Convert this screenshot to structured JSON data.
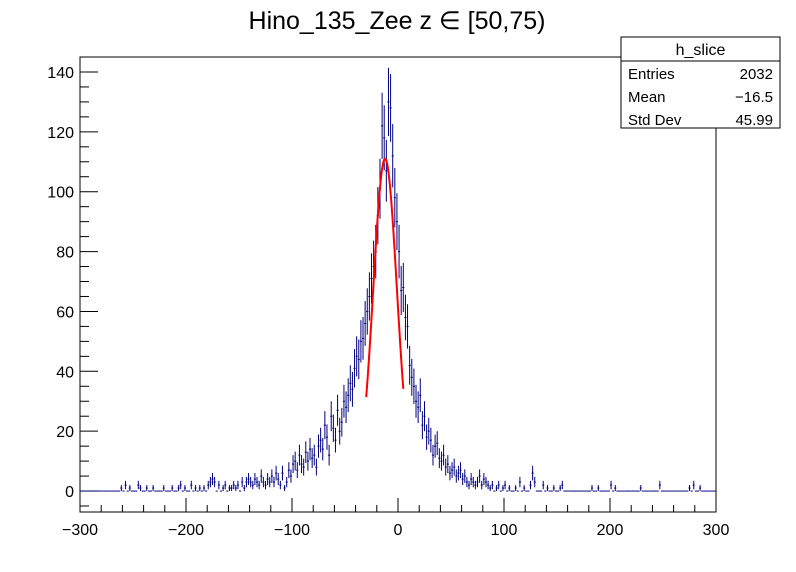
{
  "chart_data": {
    "type": "histogram",
    "title": "Hino_135_Zee z  ∈ [50,75)",
    "xlabel": "",
    "ylabel": "",
    "xlim": [
      -300,
      300
    ],
    "ylim": [
      -7,
      145
    ],
    "x_ticks": [
      -300,
      -200,
      -100,
      0,
      100,
      200,
      300
    ],
    "x_tick_labels": [
      "−300",
      "−200",
      "−100",
      "0",
      "100",
      "200",
      "300"
    ],
    "y_ticks": [
      0,
      20,
      40,
      60,
      80,
      100,
      120,
      140
    ],
    "y_tick_labels": [
      "0",
      "20",
      "40",
      "60",
      "80",
      "100",
      "120",
      "140"
    ],
    "grid": false,
    "histogram_color": "#000080",
    "fit_color": "#ff0000",
    "bin_width": 2,
    "bins": [
      [
        -262,
        1
      ],
      [
        -258,
        2
      ],
      [
        -254,
        1
      ],
      [
        -246,
        2
      ],
      [
        -244,
        1
      ],
      [
        -238,
        1
      ],
      [
        -232,
        1
      ],
      [
        -222,
        1
      ],
      [
        -214,
        1
      ],
      [
        -208,
        1
      ],
      [
        -206,
        2
      ],
      [
        -202,
        1
      ],
      [
        -196,
        2
      ],
      [
        -192,
        1
      ],
      [
        -188,
        1
      ],
      [
        -184,
        1
      ],
      [
        -180,
        2
      ],
      [
        -178,
        3
      ],
      [
        -176,
        4
      ],
      [
        -174,
        3
      ],
      [
        -170,
        2
      ],
      [
        -166,
        1
      ],
      [
        -164,
        2
      ],
      [
        -160,
        1
      ],
      [
        -158,
        1
      ],
      [
        -156,
        2
      ],
      [
        -154,
        1
      ],
      [
        -152,
        2
      ],
      [
        -148,
        3
      ],
      [
        -146,
        1
      ],
      [
        -144,
        3
      ],
      [
        -142,
        4
      ],
      [
        -140,
        3
      ],
      [
        -138,
        2
      ],
      [
        -136,
        4
      ],
      [
        -134,
        3
      ],
      [
        -132,
        2
      ],
      [
        -130,
        5
      ],
      [
        -128,
        3
      ],
      [
        -126,
        2
      ],
      [
        -124,
        4
      ],
      [
        -122,
        3
      ],
      [
        -120,
        5
      ],
      [
        -118,
        3
      ],
      [
        -116,
        6
      ],
      [
        -114,
        4
      ],
      [
        -112,
        2
      ],
      [
        -110,
        6
      ],
      [
        -108,
        1
      ],
      [
        -106,
        3
      ],
      [
        -104,
        7
      ],
      [
        -102,
        5
      ],
      [
        -100,
        9
      ],
      [
        -98,
        10
      ],
      [
        -96,
        7
      ],
      [
        -94,
        12
      ],
      [
        -92,
        9
      ],
      [
        -90,
        8
      ],
      [
        -88,
        13
      ],
      [
        -86,
        10
      ],
      [
        -84,
        14
      ],
      [
        -82,
        11
      ],
      [
        -80,
        12
      ],
      [
        -78,
        8
      ],
      [
        -76,
        15
      ],
      [
        -74,
        17
      ],
      [
        -72,
        14
      ],
      [
        -70,
        22
      ],
      [
        -68,
        18
      ],
      [
        -66,
        12
      ],
      [
        -64,
        25
      ],
      [
        -62,
        21
      ],
      [
        -60,
        17
      ],
      [
        -58,
        27
      ],
      [
        -56,
        20
      ],
      [
        -54,
        23
      ],
      [
        -52,
        30
      ],
      [
        -50,
        28
      ],
      [
        -48,
        32
      ],
      [
        -46,
        36
      ],
      [
        -44,
        34
      ],
      [
        -42,
        41
      ],
      [
        -40,
        45
      ],
      [
        -38,
        44
      ],
      [
        -36,
        50
      ],
      [
        -34,
        51
      ],
      [
        -32,
        56
      ],
      [
        -30,
        60
      ],
      [
        -28,
        65
      ],
      [
        -26,
        71
      ],
      [
        -24,
        75
      ],
      [
        -22,
        80
      ],
      [
        -20,
        92
      ],
      [
        -18,
        101
      ],
      [
        -16,
        122
      ],
      [
        -14,
        118
      ],
      [
        -12,
        107
      ],
      [
        -10,
        130
      ],
      [
        -8,
        128
      ],
      [
        -6,
        112
      ],
      [
        -4,
        98
      ],
      [
        -2,
        90
      ],
      [
        0,
        80
      ],
      [
        2,
        67
      ],
      [
        4,
        68
      ],
      [
        6,
        58
      ],
      [
        8,
        55
      ],
      [
        10,
        42
      ],
      [
        12,
        38
      ],
      [
        14,
        35
      ],
      [
        16,
        30
      ],
      [
        18,
        28
      ],
      [
        20,
        32
      ],
      [
        22,
        22
      ],
      [
        24,
        25
      ],
      [
        26,
        18
      ],
      [
        28,
        20
      ],
      [
        30,
        17
      ],
      [
        32,
        12
      ],
      [
        34,
        15
      ],
      [
        36,
        16
      ],
      [
        38,
        11
      ],
      [
        40,
        10
      ],
      [
        42,
        12
      ],
      [
        44,
        8
      ],
      [
        46,
        9
      ],
      [
        48,
        6
      ],
      [
        50,
        7
      ],
      [
        52,
        8
      ],
      [
        54,
        5
      ],
      [
        56,
        6
      ],
      [
        58,
        7
      ],
      [
        60,
        4
      ],
      [
        62,
        5
      ],
      [
        64,
        3
      ],
      [
        66,
        2
      ],
      [
        68,
        4
      ],
      [
        70,
        3
      ],
      [
        72,
        2
      ],
      [
        74,
        3
      ],
      [
        76,
        5
      ],
      [
        78,
        2
      ],
      [
        80,
        4
      ],
      [
        82,
        3
      ],
      [
        84,
        2
      ],
      [
        86,
        1
      ],
      [
        88,
        2
      ],
      [
        92,
        1
      ],
      [
        94,
        2
      ],
      [
        98,
        1
      ],
      [
        100,
        2
      ],
      [
        104,
        1
      ],
      [
        110,
        1
      ],
      [
        114,
        3
      ],
      [
        118,
        1
      ],
      [
        124,
        2
      ],
      [
        126,
        6
      ],
      [
        128,
        3
      ],
      [
        136,
        2
      ],
      [
        140,
        1
      ],
      [
        146,
        1
      ],
      [
        152,
        1
      ],
      [
        154,
        2
      ],
      [
        182,
        1
      ],
      [
        188,
        1
      ],
      [
        200,
        2
      ],
      [
        204,
        1
      ],
      [
        228,
        1
      ],
      [
        246,
        2
      ],
      [
        274,
        1
      ],
      [
        278,
        2
      ],
      [
        284,
        1
      ]
    ],
    "fit": {
      "type": "gauss",
      "range": [
        -30,
        5
      ],
      "mean": -12.2,
      "sigma": 11.2,
      "amplitude": 111
    },
    "legend": {
      "placement": "top-right",
      "title": "h_slice",
      "rows": [
        {
          "label": "Entries",
          "value": "2032"
        },
        {
          "label": "Mean",
          "value": "−16.5"
        },
        {
          "label": "Std Dev",
          "value": "45.99"
        }
      ]
    }
  }
}
